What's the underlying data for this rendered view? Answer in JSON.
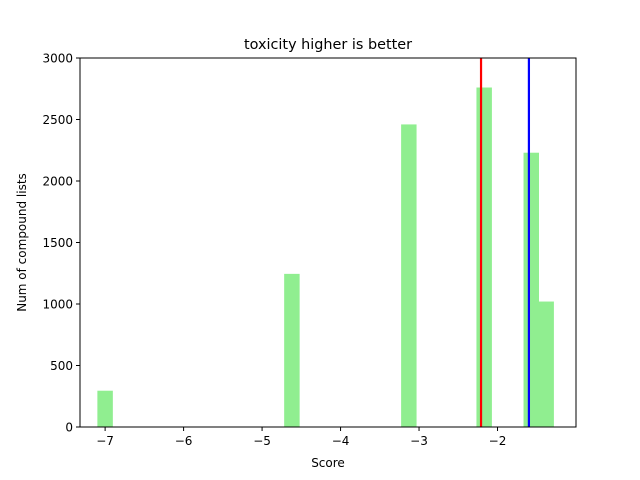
{
  "chart_data": {
    "type": "bar",
    "title": "toxicity higher is better",
    "xlabel": "Score",
    "ylabel": "Num of compound lists",
    "xlim": [
      -7.32,
      -1.0
    ],
    "ylim": [
      0,
      3000
    ],
    "xticks": [
      -7,
      -6,
      -5,
      -4,
      -3,
      -2
    ],
    "xtick_labels": [
      "−7",
      "−6",
      "−5",
      "−4",
      "−3",
      "−2"
    ],
    "yticks": [
      0,
      500,
      1000,
      1500,
      2000,
      2500,
      3000
    ],
    "ytick_labels": [
      "0",
      "500",
      "1000",
      "1500",
      "2000",
      "2500",
      "3000"
    ],
    "bin_width": 0.197,
    "bars": [
      {
        "x": -7.0,
        "value": 295
      },
      {
        "x": -4.62,
        "value": 1245
      },
      {
        "x": -3.13,
        "value": 2460
      },
      {
        "x": -2.17,
        "value": 2760
      },
      {
        "x": -1.57,
        "value": 2230
      },
      {
        "x": -1.38,
        "value": 1020
      }
    ],
    "vlines": [
      {
        "x": -2.21,
        "color": "#ff0000"
      },
      {
        "x": -1.6,
        "color": "#0000ff"
      }
    ],
    "bar_color": "#90ee90",
    "grid": false
  }
}
